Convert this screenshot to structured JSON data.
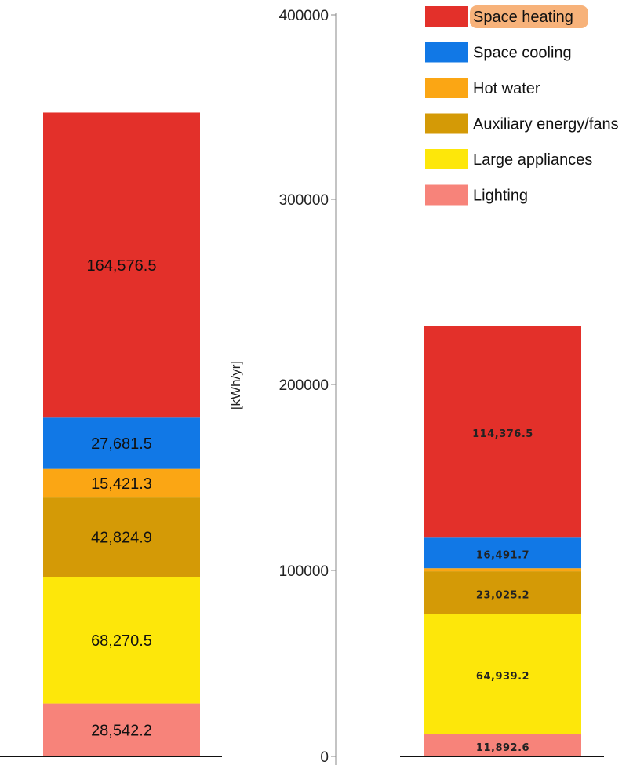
{
  "chart_data": {
    "type": "bar",
    "stacked": true,
    "ylabel": "[kWh/yr]",
    "ylim": [
      0,
      400000
    ],
    "yticks": [
      "0",
      "100000",
      "200000",
      "300000",
      "400000"
    ],
    "grid": false,
    "legend_position": "top-right",
    "legend_highlight": "Space heating",
    "series": [
      {
        "name": "Space heating",
        "color": "#e3302a"
      },
      {
        "name": "Space cooling",
        "color": "#1178e6"
      },
      {
        "name": "Hot water",
        "color": "#fba614"
      },
      {
        "name": "Auxiliary energy/fans",
        "color": "#d49a06"
      },
      {
        "name": "Large appliances",
        "color": "#fde70a"
      },
      {
        "name": "Lighting",
        "color": "#f7837a"
      }
    ],
    "bars": [
      {
        "values": {
          "Lighting": 28542.2,
          "Large appliances": 68270.5,
          "Auxiliary energy/fans": 42824.9,
          "Hot water": 15421.3,
          "Space cooling": 27681.5,
          "Space heating": 164576.5
        },
        "labels": {
          "Lighting": "28,542.2",
          "Large appliances": "68,270.5",
          "Auxiliary energy/fans": "42,824.9",
          "Hot water": "15,421.3",
          "Space cooling": "27,681.5",
          "Space heating": "164,576.5"
        }
      },
      {
        "values": {
          "Lighting": 11892.6,
          "Large appliances": 64939.2,
          "Auxiliary energy/fans": 23025.2,
          "Hot water": 1640,
          "Space cooling": 16491.7,
          "Space heating": 114376.5
        },
        "labels": {
          "Lighting": "11,892.6",
          "Large appliances": "64,939.2",
          "Auxiliary energy/fans": "23,025.2",
          "Space cooling": "16,491.7",
          "Space heating": "114,376.5"
        }
      }
    ]
  }
}
